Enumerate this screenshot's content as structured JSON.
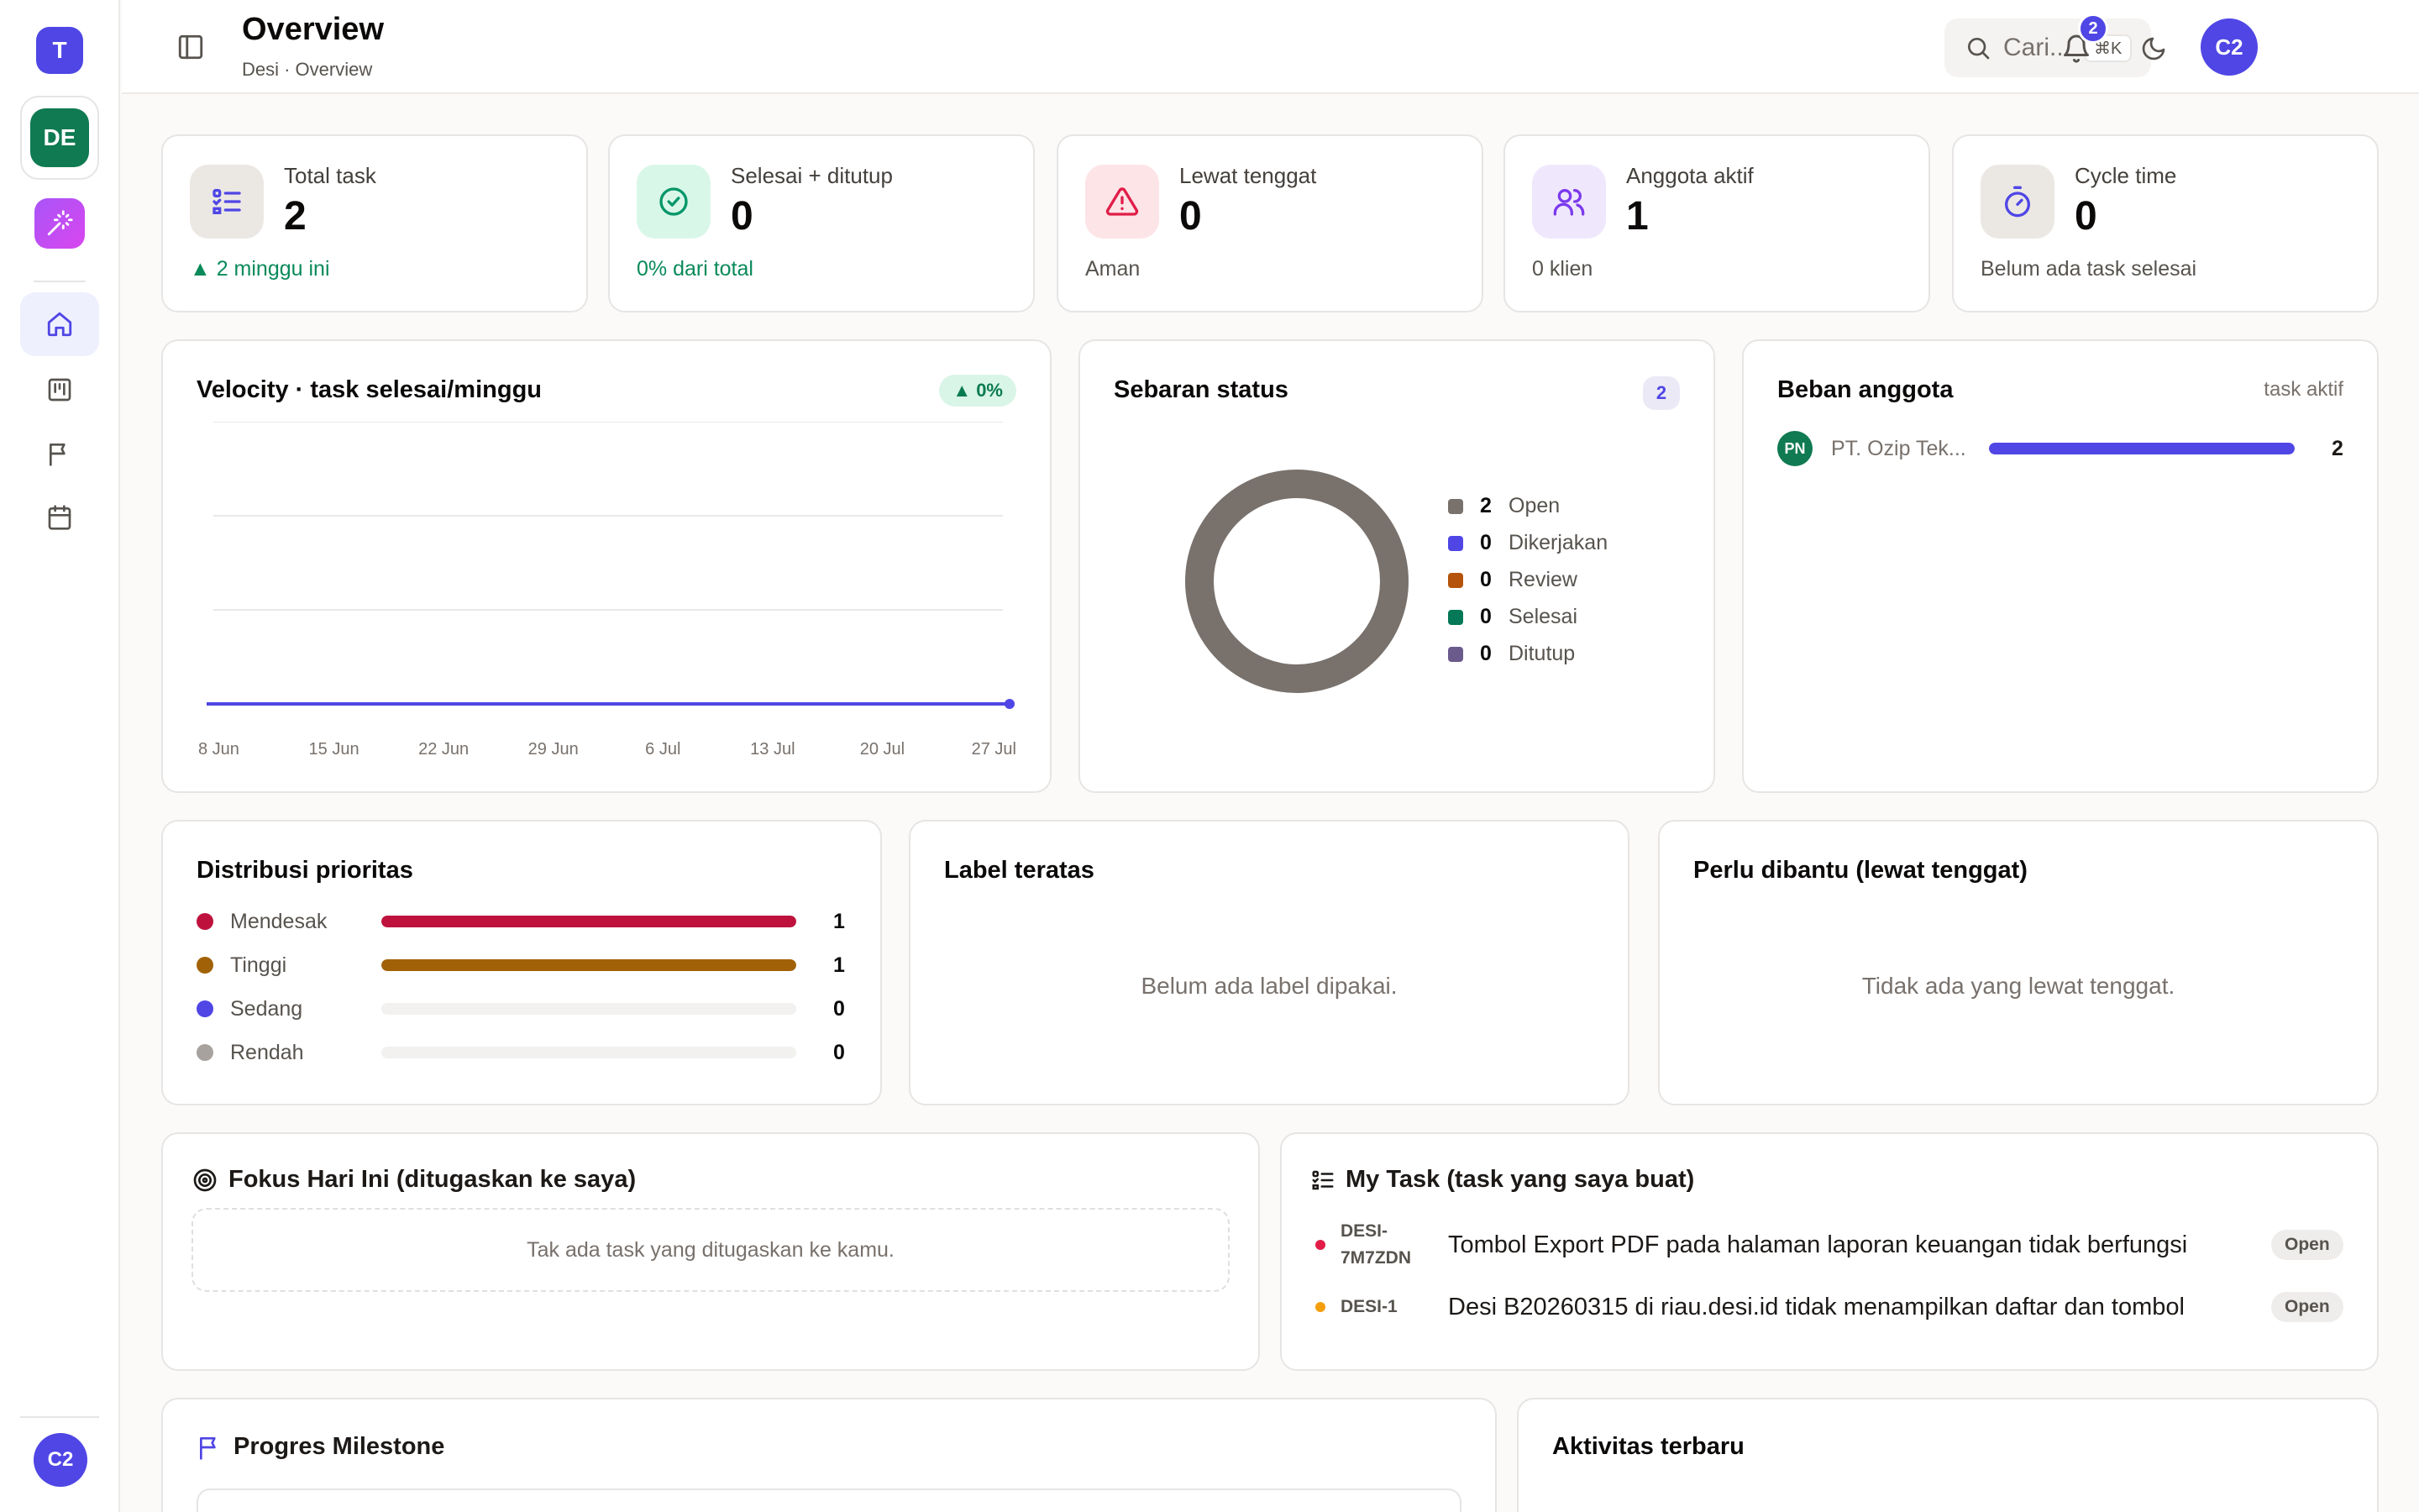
{
  "sidebar": {
    "team_initial": "T",
    "workspace_initials": "DE",
    "user_initials": "C2",
    "nav": [
      "home-icon",
      "board-icon",
      "flag-icon",
      "calendar-icon"
    ]
  },
  "header": {
    "title": "Overview",
    "breadcrumb": "Desi · Overview",
    "search_placeholder": "Cari...",
    "search_shortcut": "⌘K",
    "notification_count": "2",
    "avatar_initials": "C2"
  },
  "stats": [
    {
      "label": "Total task",
      "value": "2",
      "sub": "▲ 2 minggu ini",
      "icon": "list-icon"
    },
    {
      "label": "Selesai + ditutup",
      "value": "0",
      "sub": "0% dari total",
      "icon": "check-circle-icon"
    },
    {
      "label": "Lewat tenggat",
      "value": "0",
      "sub": "Aman",
      "icon": "alert-triangle-icon"
    },
    {
      "label": "Anggota aktif",
      "value": "1",
      "sub": "0 klien",
      "icon": "users-icon"
    },
    {
      "label": "Cycle time",
      "value": "0",
      "sub": "Belum ada task selesai",
      "icon": "timer-icon"
    }
  ],
  "velocity": {
    "title": "Velocity · task selesai/minggu",
    "trend": "▲ 0%"
  },
  "chart_data": {
    "type": "line",
    "title": "Velocity · task selesai/minggu",
    "categories": [
      "8 Jun",
      "15 Jun",
      "22 Jun",
      "29 Jun",
      "6 Jul",
      "13 Jul",
      "20 Jul",
      "27 Jul"
    ],
    "series": [
      {
        "values": [
          0,
          0,
          0,
          0,
          0,
          0,
          0,
          0
        ]
      }
    ],
    "ylim": [
      0,
      3
    ],
    "grid": true
  },
  "status": {
    "title": "Sebaran status",
    "count": "2",
    "items": [
      {
        "num": "2",
        "label": "Open",
        "color": "#78716c"
      },
      {
        "num": "0",
        "label": "Dikerjakan",
        "color": "#4f46e5"
      },
      {
        "num": "0",
        "label": "Review",
        "color": "#b45309"
      },
      {
        "num": "0",
        "label": "Selesai",
        "color": "#047857"
      },
      {
        "num": "0",
        "label": "Ditutup",
        "color": "#6b5b8c"
      }
    ]
  },
  "load": {
    "title": "Beban anggota",
    "right_label": "task aktif",
    "members": [
      {
        "initials": "PN",
        "name": "PT. Ozip Tek...",
        "count": "2",
        "fraction": 1.0
      }
    ]
  },
  "priority": {
    "title": "Distribusi prioritas",
    "items": [
      {
        "label": "Mendesak",
        "count": "1",
        "fraction": 1.0,
        "color": "#be123c"
      },
      {
        "label": "Tinggi",
        "count": "1",
        "fraction": 1.0,
        "color": "#a16207"
      },
      {
        "label": "Sedang",
        "count": "0",
        "fraction": 0,
        "color": "#4f46e5"
      },
      {
        "label": "Rendah",
        "count": "0",
        "fraction": 0,
        "color": "#a8a29e"
      }
    ]
  },
  "labels_card": {
    "title": "Label teratas",
    "empty": "Belum ada label dipakai."
  },
  "help_card": {
    "title": "Perlu dibantu (lewat tenggat)",
    "empty": "Tidak ada yang lewat tenggat."
  },
  "focus": {
    "title": "Fokus Hari Ini (ditugaskan ke saya)",
    "empty": "Tak ada task yang ditugaskan ke kamu."
  },
  "mytask": {
    "title": "My Task (task yang saya buat)",
    "tasks": [
      {
        "id": "DESI-7M7ZDN",
        "title": "Tombol Export PDF pada halaman laporan keuangan tidak berfungsi",
        "status": "Open",
        "color": "#e11d48"
      },
      {
        "id": "DESI-1",
        "title": "Desi B20260315 di riau.desi.id tidak menampilkan daftar dan tombol",
        "status": "Open",
        "color": "#f59e0b"
      }
    ]
  },
  "milestone": {
    "title": "Progres Milestone"
  },
  "activity": {
    "title": "Aktivitas terbaru"
  }
}
